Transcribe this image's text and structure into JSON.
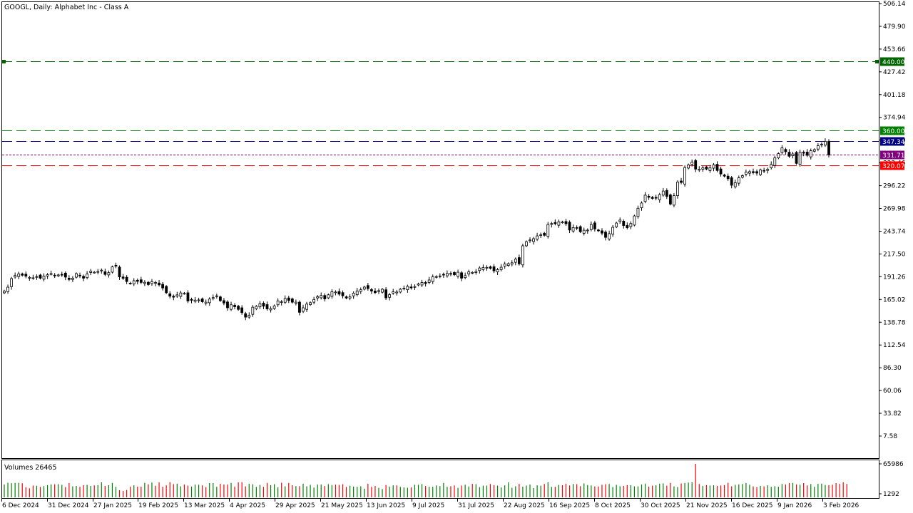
{
  "chart_data": {
    "type": "candlestick",
    "title": "GOOGL, Daily:  Alphabet Inc - Class A",
    "volume_label": "Volumes 26465",
    "price_axis": {
      "ylim": [
        -10.0,
        506.14
      ],
      "ticks": [
        "506.14",
        "479.90",
        "453.66",
        "427.42",
        "401.18",
        "374.94",
        "348.70",
        "322.46",
        "296.22",
        "269.98",
        "243.74",
        "217.50",
        "191.26",
        "165.02",
        "138.78",
        "112.54",
        "86.30",
        "60.06",
        "33.82",
        "7.58"
      ]
    },
    "volume_axis": {
      "ticks": [
        "65986",
        "1292"
      ],
      "ylim": [
        0,
        65986
      ]
    },
    "x_axis": {
      "tick_labels": [
        "6 Dec 2024",
        "31 Dec 2024",
        "27 Jan 2025",
        "19 Feb 2025",
        "13 Mar 2025",
        "4 Apr 2025",
        "29 Apr 2025",
        "21 May 2025",
        "13 Jun 2025",
        "9 Jul 2025",
        "31 Jul 2025",
        "22 Aug 2025",
        "16 Sep 2025",
        "8 Oct 2025",
        "30 Oct 2025",
        "21 Nov 2025",
        "16 Dec 2025",
        "9 Jan 2026",
        "3 Feb 2026"
      ]
    },
    "levels": [
      {
        "label": "440.00",
        "value": 440.0,
        "color": "#006400",
        "style": "dash"
      },
      {
        "label": "360.00",
        "value": 360.0,
        "color": "#008000",
        "style": "dash"
      },
      {
        "label": "347.34",
        "value": 347.34,
        "color": "#000080",
        "style": "dash"
      },
      {
        "label": "331.71",
        "value": 331.71,
        "color": "#800080",
        "style": "dot"
      },
      {
        "label": "320.07",
        "value": 320.07,
        "color": "#ff0000",
        "style": "dash"
      }
    ],
    "close_series": [
      174.7,
      179.2,
      189.1,
      192.6,
      194.5,
      193.0,
      191.9,
      190.4,
      190.0,
      191.4,
      189.6,
      192.1,
      193.5,
      194.8,
      192.9,
      193.3,
      193.6,
      190.8,
      188.1,
      189.5,
      194.8,
      192.3,
      189.6,
      194.3,
      197.6,
      196.4,
      197.2,
      198.8,
      193.9,
      195.9,
      202.6,
      203.5,
      191.0,
      189.4,
      185.7,
      183.6,
      186.6,
      185.9,
      184.7,
      184.8,
      182.2,
      185.5,
      184.6,
      181.9,
      178.3,
      172.8,
      168.8,
      167.7,
      170.3,
      172.6,
      172.1,
      163.3,
      164.1,
      164.3,
      164.5,
      162.4,
      161.9,
      165.5,
      167.2,
      169.2,
      163.7,
      160.9,
      155.5,
      158.9,
      156.7,
      153.6,
      149.9,
      144.7,
      146.7,
      156.1,
      157.1,
      160.2,
      157.3,
      154.2,
      154.5,
      157.7,
      163.4,
      162.4,
      166.2,
      163.9,
      161.9,
      161.9,
      150.2,
      155.4,
      159.7,
      161.3,
      165.0,
      168.2,
      169.6,
      165.7,
      170.4,
      173.9,
      173.6,
      171.1,
      169.3,
      166.7,
      168.0,
      172.3,
      174.9,
      176.3,
      179.3,
      177.6,
      174.8,
      173.0,
      175.2,
      176.8,
      166.9,
      170.6,
      173.8,
      173.6,
      176.8,
      178.1,
      180.1,
      178.4,
      179.9,
      182.9,
      184.6,
      183.4,
      187.5,
      191.3,
      191.4,
      192.2,
      193.5,
      195.0,
      194.9,
      193.5,
      196.4,
      189.6,
      192.5,
      196.8,
      196.1,
      197.2,
      201.3,
      201.8,
      202.0,
      201.0,
      198.0,
      199.4,
      202.2,
      206.0,
      206.3,
      207.3,
      211.5,
      206.1,
      226.9,
      231.6,
      233.6,
      235.1,
      238.3,
      239.6,
      239.0,
      251.5,
      252.6,
      252.4,
      254.6,
      254.3,
      252.3,
      245.1,
      247.9,
      247.8,
      243.1,
      244.9,
      245.0,
      251.5,
      246.3,
      244.2,
      241.5,
      236.6,
      240.9,
      248.2,
      253.1,
      256.5,
      250.3,
      247.8,
      252.6,
      261.3,
      270.2,
      276.2,
      285.3,
      282.8,
      281.5,
      281.8,
      285.9,
      290.0,
      283.8,
      275.0,
      284.7,
      300.4,
      299.9,
      317.1,
      320.2,
      323.4,
      315.3,
      315.2,
      316.7,
      315.4,
      317.0,
      320.2,
      313.7,
      309.7,
      307.2,
      304.2,
      296.7,
      299.7,
      305.3,
      307.7,
      311.8,
      312.4,
      311.2,
      310.7,
      314.4,
      313.2,
      315.1,
      320.7,
      328.2,
      333.2,
      339.8,
      335.4,
      330.1,
      332.8,
      321.9,
      334.8,
      333.7,
      331.2,
      336.5,
      337.8,
      342.2,
      344.1,
      347.3,
      331.7
    ],
    "volume_series": [
      25300,
      28800,
      27900,
      28400,
      28600,
      27800,
      20000,
      17800,
      23200,
      22700,
      20500,
      22200,
      24100,
      25500,
      25700,
      26000,
      24600,
      20300,
      28200,
      21600,
      22500,
      20700,
      24000,
      24600,
      22400,
      23600,
      24100,
      29500,
      22400,
      24000,
      28400,
      20700,
      14000,
      12600,
      14500,
      20900,
      23700,
      20900,
      21000,
      28500,
      25700,
      29100,
      22900,
      29300,
      20700,
      23600,
      29800,
      26000,
      26900,
      21600,
      25300,
      23100,
      21300,
      25100,
      24900,
      23600,
      20200,
      28200,
      28000,
      20700,
      26600,
      25300,
      25200,
      28400,
      21000,
      29600,
      29800,
      21600,
      26600,
      25800,
      20500,
      24500,
      20500,
      28500,
      24100,
      25900,
      19500,
      28700,
      21800,
      28400,
      23900,
      22100,
      22000,
      26800,
      21700,
      24600,
      19200,
      25200,
      25200,
      22300,
      25900,
      24300,
      25000,
      24500,
      25900,
      20500,
      22900,
      21300,
      20700,
      21700,
      17100,
      26800,
      20700,
      22400,
      18800,
      16400,
      24200,
      21100,
      23600,
      23600,
      20600,
      19400,
      18900,
      19500,
      24800,
      24800,
      26300,
      22300,
      20800,
      20700,
      23500,
      22100,
      28400,
      20900,
      21900,
      23300,
      18700,
      23300,
      24800,
      21400,
      26600,
      26000,
      20200,
      23000,
      23100,
      26200,
      24100,
      23100,
      19400,
      23600,
      29300,
      19000,
      21800,
      26600,
      20900,
      23300,
      25200,
      18300,
      23700,
      23000,
      26300,
      29500,
      20600,
      20600,
      24500,
      23900,
      26900,
      23400,
      26300,
      25900,
      22000,
      27500,
      24200,
      23500,
      21500,
      21400,
      24700,
      25900,
      26200,
      20300,
      24600,
      21800,
      22500,
      24000,
      24000,
      21700,
      21600,
      25400,
      27000,
      21200,
      23000,
      23700,
      26900,
      27500,
      23000,
      28500,
      21500,
      20300,
      27200,
      28300,
      29100,
      29500,
      65986,
      26200,
      22600,
      24200,
      23200,
      23700,
      22600,
      23300,
      24100,
      28600,
      21700,
      24700,
      25500,
      26300,
      28400,
      24800,
      21600,
      19600,
      22600,
      21600,
      23700,
      20600,
      22100,
      20900,
      26400,
      25200,
      28200,
      28400,
      25500,
      24900,
      28100,
      23500,
      26100,
      20700,
      26600,
      27000,
      24400,
      24100,
      24800,
      28100,
      26500,
      29700,
      26465
    ]
  }
}
